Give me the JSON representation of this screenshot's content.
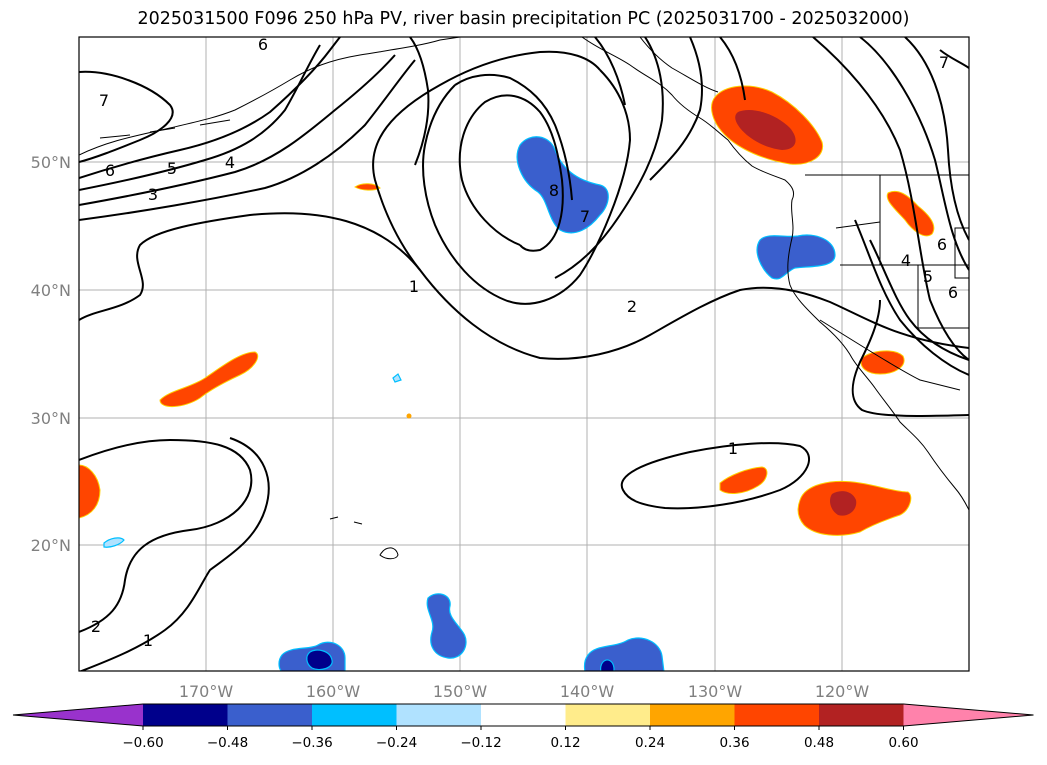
{
  "title": "2025031500 F096 250 hPa PV, river basin precipitation PC (2025031700 - 2025032000)",
  "lat_labels": [
    "50°N",
    "40°N",
    "30°N",
    "20°N"
  ],
  "lon_labels": [
    "170°W",
    "160°W",
    "150°W",
    "140°W",
    "130°W",
    "120°W"
  ],
  "colorbar": {
    "ticks": [
      "−0.60",
      "−0.48",
      "−0.36",
      "−0.24",
      "−0.12",
      "0.12",
      "0.24",
      "0.36",
      "0.48",
      "0.60"
    ],
    "colors": [
      "#9932cc",
      "#00008b",
      "#3a5fcd",
      "#00bfff",
      "#b0e2ff",
      "#ffffff",
      "#ffec8b",
      "#ffa500",
      "#ff4500",
      "#b22222",
      "#ff82ab"
    ]
  },
  "contour_labels": [
    "6",
    "7",
    "6",
    "5",
    "4",
    "3",
    "8",
    "7",
    "1",
    "2",
    "1",
    "2",
    "1",
    "7",
    "6",
    "4",
    "5",
    "6"
  ]
}
